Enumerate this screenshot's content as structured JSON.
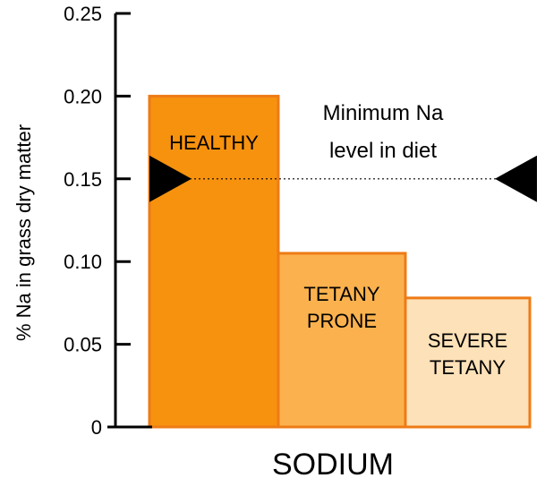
{
  "chart_data": {
    "type": "bar",
    "title": "",
    "xlabel": "SODIUM",
    "ylabel": "% Na in grass dry matter",
    "ylim": [
      0,
      0.25
    ],
    "yticks": [
      "0",
      "0.05",
      "0.10",
      "0.15",
      "0.20",
      "0.25"
    ],
    "grid": false,
    "categories": [
      {
        "lines": [
          "HEALTHY"
        ],
        "value": 0.2,
        "color": "#f7920e"
      },
      {
        "lines": [
          "TETANY",
          "PRONE"
        ],
        "value": 0.105,
        "color": "#fbb24e"
      },
      {
        "lines": [
          "SEVERE",
          "TETANY"
        ],
        "value": 0.078,
        "color": "#fde1b8"
      }
    ],
    "bar_stroke": "#ee7b16",
    "threshold": {
      "value": 0.15,
      "label_lines": [
        "Minimum Na",
        "level in diet"
      ],
      "style": "dotted",
      "markers": "black-triangles-at-both-ends"
    }
  }
}
